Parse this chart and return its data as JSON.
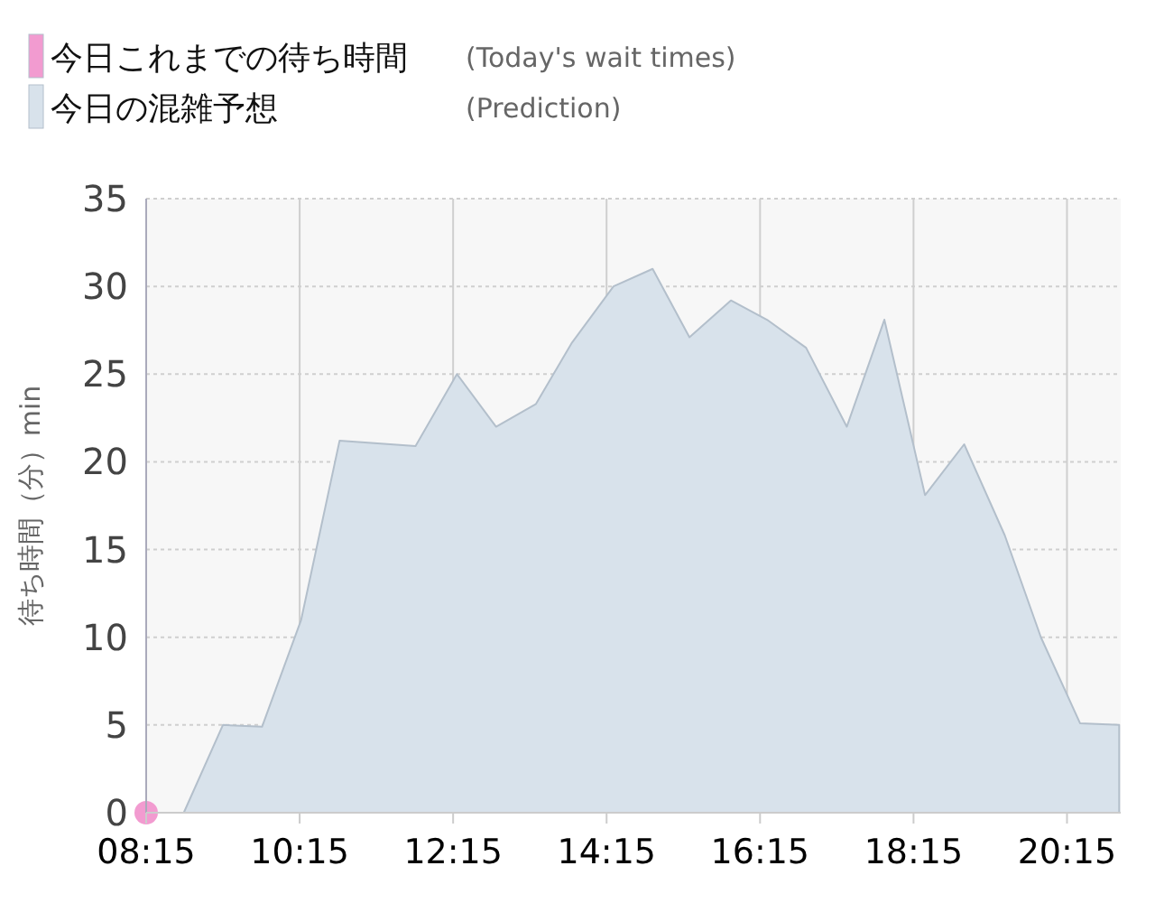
{
  "chart_data": {
    "type": "area",
    "ylabel": "待ち時間（分）min",
    "annotations": [
      "(Today's wait times)",
      "(Prediction)"
    ],
    "xlim": [
      8.25,
      20.95
    ],
    "ylim": [
      0,
      35
    ],
    "xticks": [
      {
        "value": 8.25,
        "label": "08:15"
      },
      {
        "value": 10.25,
        "label": "10:15"
      },
      {
        "value": 12.25,
        "label": "12:15"
      },
      {
        "value": 14.25,
        "label": "14:15"
      },
      {
        "value": 16.25,
        "label": "16:15"
      },
      {
        "value": 18.25,
        "label": "18:15"
      },
      {
        "value": 20.25,
        "label": "20:15"
      }
    ],
    "yticks": [
      0,
      5,
      10,
      15,
      20,
      25,
      30,
      35
    ],
    "grid": true,
    "legend": "top left",
    "series": [
      {
        "name": "今日これまでの待ち時間",
        "type": "scatter",
        "marker": "circle",
        "color": "#f29bd0",
        "x": [
          8.25
        ],
        "values": [
          0
        ]
      },
      {
        "name": "今日の混雑予想",
        "color": "#d8e2eb",
        "x": [
          8.25,
          8.74,
          9.25,
          9.76,
          10.27,
          10.77,
          11.76,
          12.3,
          12.81,
          13.33,
          13.8,
          14.34,
          14.85,
          15.33,
          15.87,
          16.34,
          16.85,
          17.38,
          17.87,
          18.4,
          18.91,
          19.44,
          19.91,
          20.42,
          20.93
        ],
        "values": [
          0,
          0,
          5,
          4.9,
          11,
          21.2,
          20.9,
          25,
          22,
          23.3,
          26.8,
          30,
          31,
          27.1,
          29.2,
          28.1,
          26.5,
          22,
          28.1,
          18.1,
          21,
          15.8,
          10,
          5.1,
          5
        ]
      }
    ]
  }
}
